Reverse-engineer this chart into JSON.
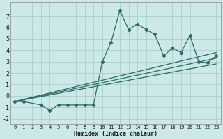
{
  "xlabel": "Humidex (Indice chaleur)",
  "xlim": [
    -0.5,
    23.5
  ],
  "ylim": [
    -2.5,
    8.2
  ],
  "yticks": [
    -2,
    -1,
    0,
    1,
    2,
    3,
    4,
    5,
    6,
    7
  ],
  "xticks": [
    0,
    1,
    2,
    3,
    4,
    5,
    6,
    7,
    8,
    9,
    10,
    11,
    12,
    13,
    14,
    15,
    16,
    17,
    18,
    19,
    20,
    21,
    22,
    23
  ],
  "bg_color": "#cce8e8",
  "line_color": "#2a6b65",
  "grid_color": "#aacece",
  "main_series": {
    "x": [
      0,
      1,
      3,
      4,
      5,
      6,
      7,
      8,
      9,
      10,
      11,
      12,
      13,
      14,
      15,
      16,
      17,
      18,
      19,
      20,
      21,
      22,
      23
    ],
    "y": [
      -0.5,
      -0.5,
      -0.8,
      -1.3,
      -0.8,
      -0.8,
      -0.8,
      -0.8,
      -0.8,
      3.0,
      4.7,
      7.5,
      5.8,
      6.3,
      5.8,
      5.4,
      3.5,
      4.2,
      3.8,
      5.3,
      3.0,
      2.9,
      3.5
    ]
  },
  "straight_lines": [
    {
      "x": [
        0,
        23
      ],
      "y": [
        -0.5,
        3.8
      ]
    },
    {
      "x": [
        0,
        23
      ],
      "y": [
        -0.5,
        2.8
      ]
    },
    {
      "x": [
        0,
        23
      ],
      "y": [
        -0.5,
        3.3
      ]
    }
  ]
}
